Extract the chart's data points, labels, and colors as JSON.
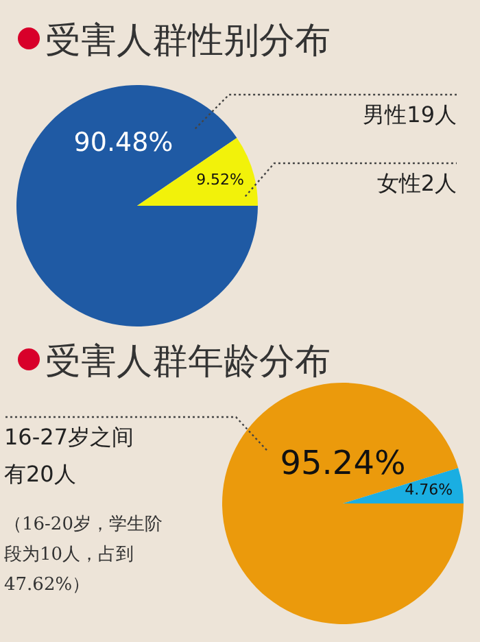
{
  "chart_data": [
    {
      "type": "pie",
      "title": "受害人群性别分布",
      "categories": [
        "男性19人",
        "女性2人"
      ],
      "values": [
        90.48,
        9.52
      ],
      "colors": [
        "#1f5aa4",
        "#f2f20a"
      ],
      "value_labels": [
        "90.48%",
        "9.52%"
      ]
    },
    {
      "type": "pie",
      "title": "受害人群年龄分布",
      "categories": [
        "16-27岁之间有20人",
        null
      ],
      "values": [
        95.24,
        4.76
      ],
      "colors": [
        "#eb9a0c",
        "#1aaee2"
      ],
      "value_labels": [
        "95.24%",
        "4.76%"
      ],
      "annotations": [
        "（16-20岁，学生阶段为10人，占到47.62%）"
      ]
    }
  ]
}
